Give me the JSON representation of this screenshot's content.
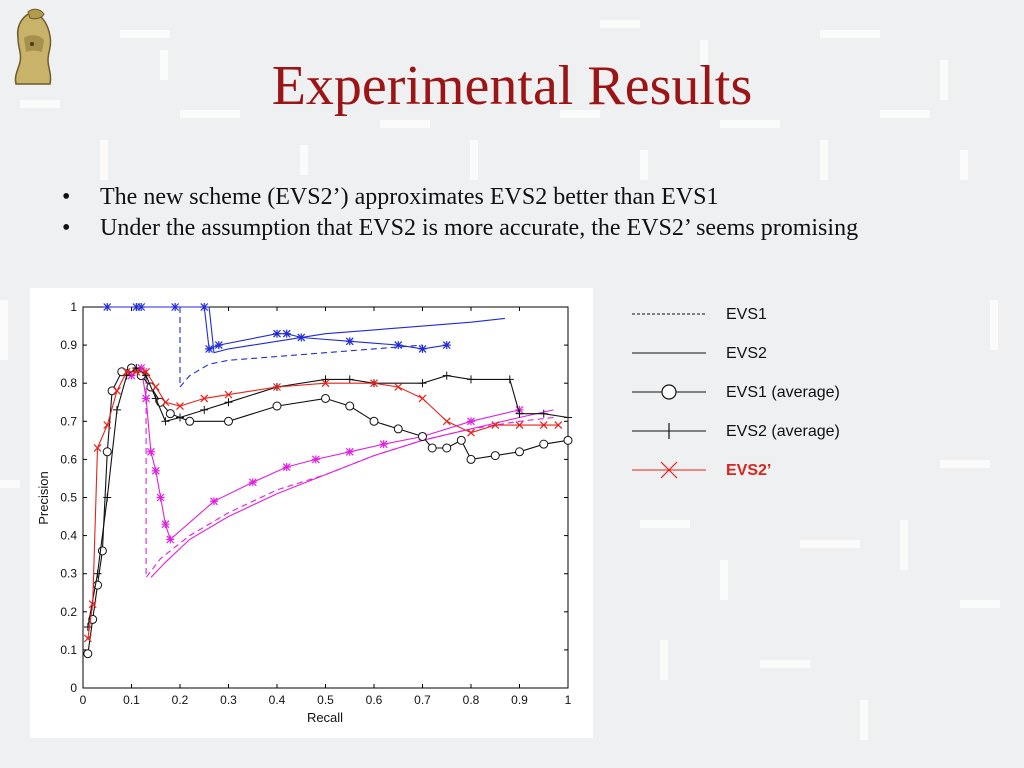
{
  "slide": {
    "title": "Experimental Results",
    "bullets": [
      "The new scheme (EVS2’) approximates EVS2 better than EVS1",
      "Under the assumption that EVS2 is more accurate, the EVS2’ seems promising"
    ],
    "bullet_glyph": "•"
  },
  "legend": [
    {
      "label": "EVS1",
      "style": "dotted"
    },
    {
      "label": "EVS2",
      "style": "solid"
    },
    {
      "label": "EVS1 (average)",
      "style": "circle"
    },
    {
      "label": "EVS2 (average)",
      "style": "plus"
    },
    {
      "label": "EVS2’",
      "style": "cross",
      "color": "#d8261e"
    }
  ],
  "chart_data": {
    "type": "line",
    "xlabel": "Recall",
    "ylabel": "Precision",
    "xlim": [
      0,
      1
    ],
    "ylim": [
      0,
      1
    ],
    "xticks": [
      "0",
      "0.1",
      "0.2",
      "0.3",
      "0.4",
      "0.5",
      "0.6",
      "0.7",
      "0.8",
      "0.9",
      "1"
    ],
    "yticks": [
      "0",
      "0.1",
      "0.2",
      "0.3",
      "0.4",
      "0.5",
      "0.6",
      "0.7",
      "0.8",
      "0.9",
      "1"
    ],
    "series": [
      {
        "color": "#1f2bd6",
        "marker": "star",
        "dash": "solid",
        "x": [
          0.05,
          0.11,
          0.12,
          0.19,
          0.25,
          0.26,
          0.28,
          0.4,
          0.42,
          0.45,
          0.55,
          0.65,
          0.7,
          0.75
        ],
        "y": [
          1.0,
          1.0,
          1.0,
          1.0,
          1.0,
          0.89,
          0.9,
          0.93,
          0.93,
          0.92,
          0.91,
          0.9,
          0.89,
          0.9
        ]
      },
      {
        "color": "#1f2bd6",
        "marker": "none",
        "dash": "solid",
        "x": [
          0.18,
          0.2,
          0.26,
          0.27,
          0.3,
          0.35,
          0.4,
          0.5,
          0.6,
          0.7,
          0.8,
          0.87
        ],
        "y": [
          1.0,
          1.0,
          1.0,
          0.88,
          0.89,
          0.9,
          0.91,
          0.93,
          0.94,
          0.95,
          0.96,
          0.97
        ]
      },
      {
        "color": "#1f2bd6",
        "marker": "none",
        "dash": "dashed",
        "x": [
          0.2,
          0.2,
          0.22,
          0.26,
          0.3,
          0.4,
          0.5,
          0.6,
          0.7
        ],
        "y": [
          1.0,
          0.79,
          0.82,
          0.85,
          0.86,
          0.87,
          0.88,
          0.89,
          0.9
        ]
      },
      {
        "color": "#e020e0",
        "marker": "star",
        "dash": "solid",
        "x": [
          0.1,
          0.12,
          0.13,
          0.14,
          0.15,
          0.16,
          0.17,
          0.18,
          0.27,
          0.35,
          0.42,
          0.48,
          0.55,
          0.62,
          0.7,
          0.8,
          0.9
        ],
        "y": [
          0.82,
          0.84,
          0.76,
          0.62,
          0.57,
          0.5,
          0.43,
          0.39,
          0.49,
          0.54,
          0.58,
          0.6,
          0.62,
          0.64,
          0.66,
          0.7,
          0.73
        ]
      },
      {
        "color": "#e020e0",
        "marker": "none",
        "dash": "solid",
        "x": [
          0.14,
          0.17,
          0.22,
          0.3,
          0.4,
          0.5,
          0.6,
          0.7,
          0.8,
          0.9,
          0.97
        ],
        "y": [
          0.29,
          0.33,
          0.39,
          0.45,
          0.51,
          0.56,
          0.61,
          0.65,
          0.68,
          0.71,
          0.73
        ]
      },
      {
        "color": "#e020e0",
        "marker": "none",
        "dash": "dashed",
        "x": [
          0.13,
          0.13,
          0.16,
          0.22,
          0.3,
          0.4,
          0.5,
          0.6,
          0.7,
          0.8,
          0.9,
          0.97
        ],
        "y": [
          0.84,
          0.29,
          0.34,
          0.4,
          0.46,
          0.52,
          0.56,
          0.61,
          0.65,
          0.68,
          0.7,
          0.71
        ]
      },
      {
        "color": "#111111",
        "marker": "circle",
        "dash": "solid",
        "x": [
          0.01,
          0.02,
          0.03,
          0.04,
          0.05,
          0.06,
          0.08,
          0.1,
          0.12,
          0.14,
          0.16,
          0.18,
          0.22,
          0.3,
          0.4,
          0.5,
          0.55,
          0.6,
          0.65,
          0.7,
          0.72,
          0.75,
          0.78,
          0.8,
          0.85,
          0.9,
          0.95,
          1.0
        ],
        "y": [
          0.09,
          0.18,
          0.27,
          0.36,
          0.62,
          0.78,
          0.83,
          0.84,
          0.82,
          0.79,
          0.75,
          0.72,
          0.7,
          0.7,
          0.74,
          0.76,
          0.74,
          0.7,
          0.68,
          0.66,
          0.63,
          0.63,
          0.65,
          0.6,
          0.61,
          0.62,
          0.64,
          0.65
        ]
      },
      {
        "color": "#111111",
        "marker": "plus",
        "dash": "solid",
        "x": [
          0.01,
          0.03,
          0.05,
          0.07,
          0.09,
          0.11,
          0.13,
          0.15,
          0.17,
          0.2,
          0.25,
          0.3,
          0.4,
          0.5,
          0.55,
          0.6,
          0.7,
          0.75,
          0.8,
          0.88,
          0.9,
          0.95,
          1.0
        ],
        "y": [
          0.16,
          0.3,
          0.5,
          0.73,
          0.82,
          0.84,
          0.82,
          0.76,
          0.7,
          0.71,
          0.73,
          0.75,
          0.79,
          0.81,
          0.81,
          0.8,
          0.8,
          0.82,
          0.81,
          0.81,
          0.72,
          0.72,
          0.71
        ]
      },
      {
        "color": "#e8201a",
        "marker": "cross",
        "dash": "solid",
        "x": [
          0.01,
          0.02,
          0.03,
          0.05,
          0.07,
          0.09,
          0.11,
          0.13,
          0.15,
          0.17,
          0.2,
          0.25,
          0.3,
          0.4,
          0.5,
          0.6,
          0.65,
          0.7,
          0.75,
          0.8,
          0.85,
          0.9,
          0.95,
          0.98
        ],
        "y": [
          0.13,
          0.22,
          0.63,
          0.69,
          0.78,
          0.83,
          0.83,
          0.83,
          0.79,
          0.75,
          0.74,
          0.76,
          0.77,
          0.79,
          0.8,
          0.8,
          0.79,
          0.76,
          0.7,
          0.67,
          0.69,
          0.69,
          0.69,
          0.69
        ]
      }
    ]
  }
}
